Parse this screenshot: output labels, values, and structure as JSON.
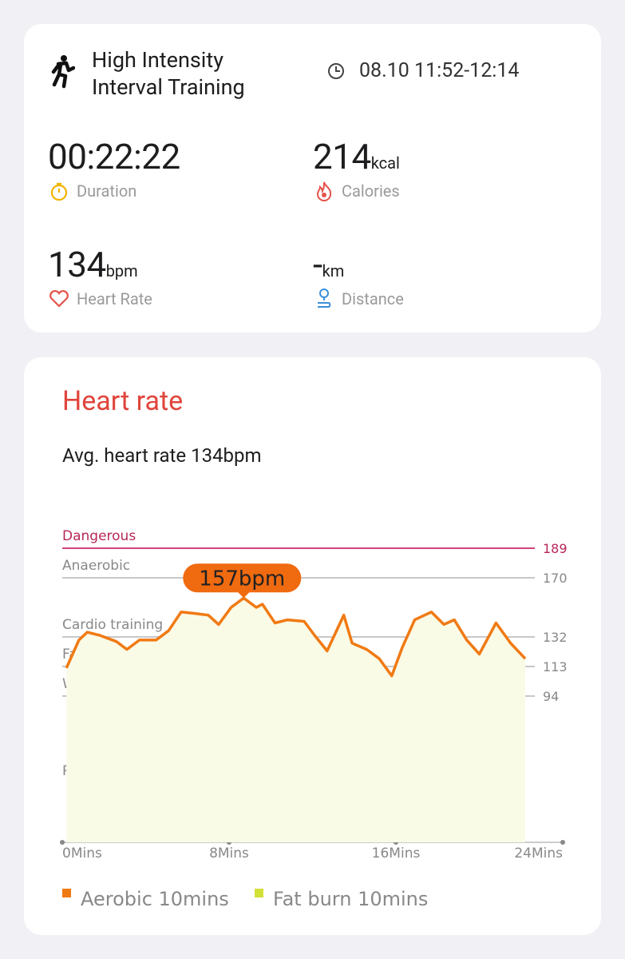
{
  "summary": {
    "title": "High Intensity\nInterval Training",
    "time": "08.10 11:52-12:14",
    "metrics": [
      {
        "value": "00:22:22",
        "label": "Duration"
      },
      {
        "value": "214",
        "unit": "kcal",
        "label": "Calories"
      },
      {
        "value": "134",
        "unit": "bpm",
        "label": "Heart Rate"
      },
      {
        "value": "-",
        "unit": "km",
        "label": "Distance"
      }
    ]
  },
  "chart_data": {
    "type": "line",
    "title": "Heart rate",
    "subtitle": "Avg. heart rate 134bpm",
    "x": [
      0.2,
      0.8,
      1.2,
      1.8,
      2.6,
      3.1,
      3.7,
      4.5,
      5.1,
      5.7,
      6.4,
      7.0,
      7.5,
      8.1,
      8.7,
      9.3,
      9.6,
      10.2,
      10.8,
      11.6,
      12.1,
      12.7,
      13.5,
      13.9,
      14.6,
      15.2,
      15.8,
      16.3,
      16.9,
      17.7,
      18.3,
      18.8,
      19.4,
      20.0,
      20.8,
      21.5,
      22.2
    ],
    "series": [
      {
        "name": "Heart rate",
        "color": "#f07a14",
        "values": [
          112,
          130,
          135,
          133,
          129,
          124,
          130,
          130,
          136,
          148,
          147,
          146,
          140,
          151,
          157,
          151,
          153,
          141,
          143,
          142,
          133,
          123,
          146,
          128,
          124,
          118,
          107,
          125,
          143,
          148,
          140,
          143,
          130,
          121,
          141,
          128,
          118
        ]
      }
    ],
    "annotation": "157bpm",
    "zones": [
      "Dangerous",
      "Anaerobic",
      "Cardio training",
      "Fat burning",
      "Warm up",
      "Resting"
    ],
    "ylim": [
      0,
      189
    ],
    "yticks": [
      189,
      170,
      132,
      113,
      94
    ],
    "xlim": [
      0,
      24
    ],
    "xticks": [
      {
        "value": 0,
        "label": "0Mins"
      },
      {
        "value": 8,
        "label": "8Mins"
      },
      {
        "value": 16,
        "label": "16Mins"
      },
      {
        "value": 24,
        "label": "24Mins"
      }
    ],
    "legend": [
      {
        "name": "Aerobic 10mins",
        "color": "#f07a14"
      },
      {
        "name": "Fat burn 10mins",
        "color": "#d4e03a"
      }
    ]
  }
}
